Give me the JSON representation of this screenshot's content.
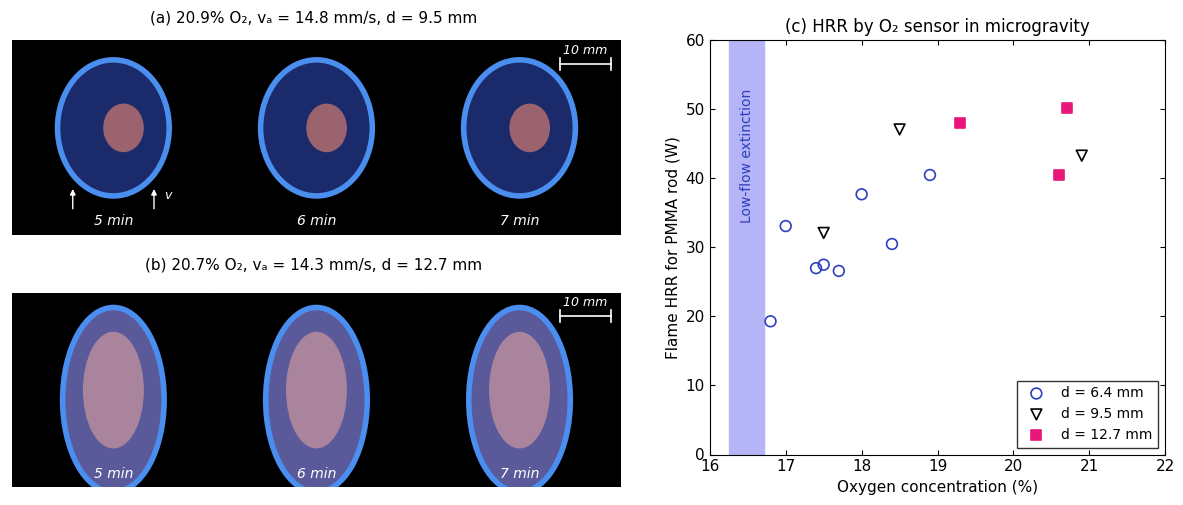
{
  "photo_panels": [
    {
      "title": "(a) 20.9% O₂, vₐ = 14.8 mm/s, d = 9.5 mm",
      "frames": [
        "5 min",
        "6 min",
        "7 min"
      ],
      "scale_bar": "10 mm",
      "arrow_label": "v"
    },
    {
      "title": "(b) 20.7% O₂, vₐ = 14.3 mm/s, d = 12.7 mm",
      "frames": [
        "5 min",
        "6 min",
        "7 min"
      ],
      "scale_bar": "10 mm"
    }
  ],
  "chart_data": {
    "type": "scatter",
    "title": "(c) HRR by O₂ sensor in microgravity",
    "x_label": "Oxygen concentration (%)",
    "y_label": "Flame HRR for PMMA rod (W)",
    "xlim": [
      16,
      22
    ],
    "xticks": [
      16,
      17,
      18,
      19,
      20,
      21,
      22
    ],
    "ylim": [
      0,
      60
    ],
    "yticks": [
      0,
      10,
      20,
      30,
      40,
      50,
      60
    ],
    "legend": "lower right",
    "shaded_region": {
      "label": "Low-flow extinction",
      "x": [
        16.25,
        16.72
      ],
      "color": "#b4b4f6"
    },
    "series": [
      {
        "name": "d = 6.4 mm",
        "color": "#2f3fbf",
        "marker": "open_circle",
        "x": [
          16.8,
          17.0,
          17.4,
          17.5,
          17.7,
          18.0,
          18.4,
          18.9
        ],
        "values": [
          19.3,
          33.1,
          27.0,
          27.5,
          26.6,
          37.7,
          30.5,
          40.5
        ]
      },
      {
        "name": "d = 9.5 mm",
        "color": "#000000",
        "marker": "open_triangle_down",
        "x": [
          17.5,
          18.5,
          20.9
        ],
        "values": [
          32.1,
          47.1,
          43.3
        ]
      },
      {
        "name": "d = 12.7 mm",
        "color": "#e8177a",
        "marker": "square",
        "x": [
          19.3,
          20.6,
          20.7
        ],
        "values": [
          48.0,
          40.5,
          50.2
        ]
      }
    ]
  }
}
